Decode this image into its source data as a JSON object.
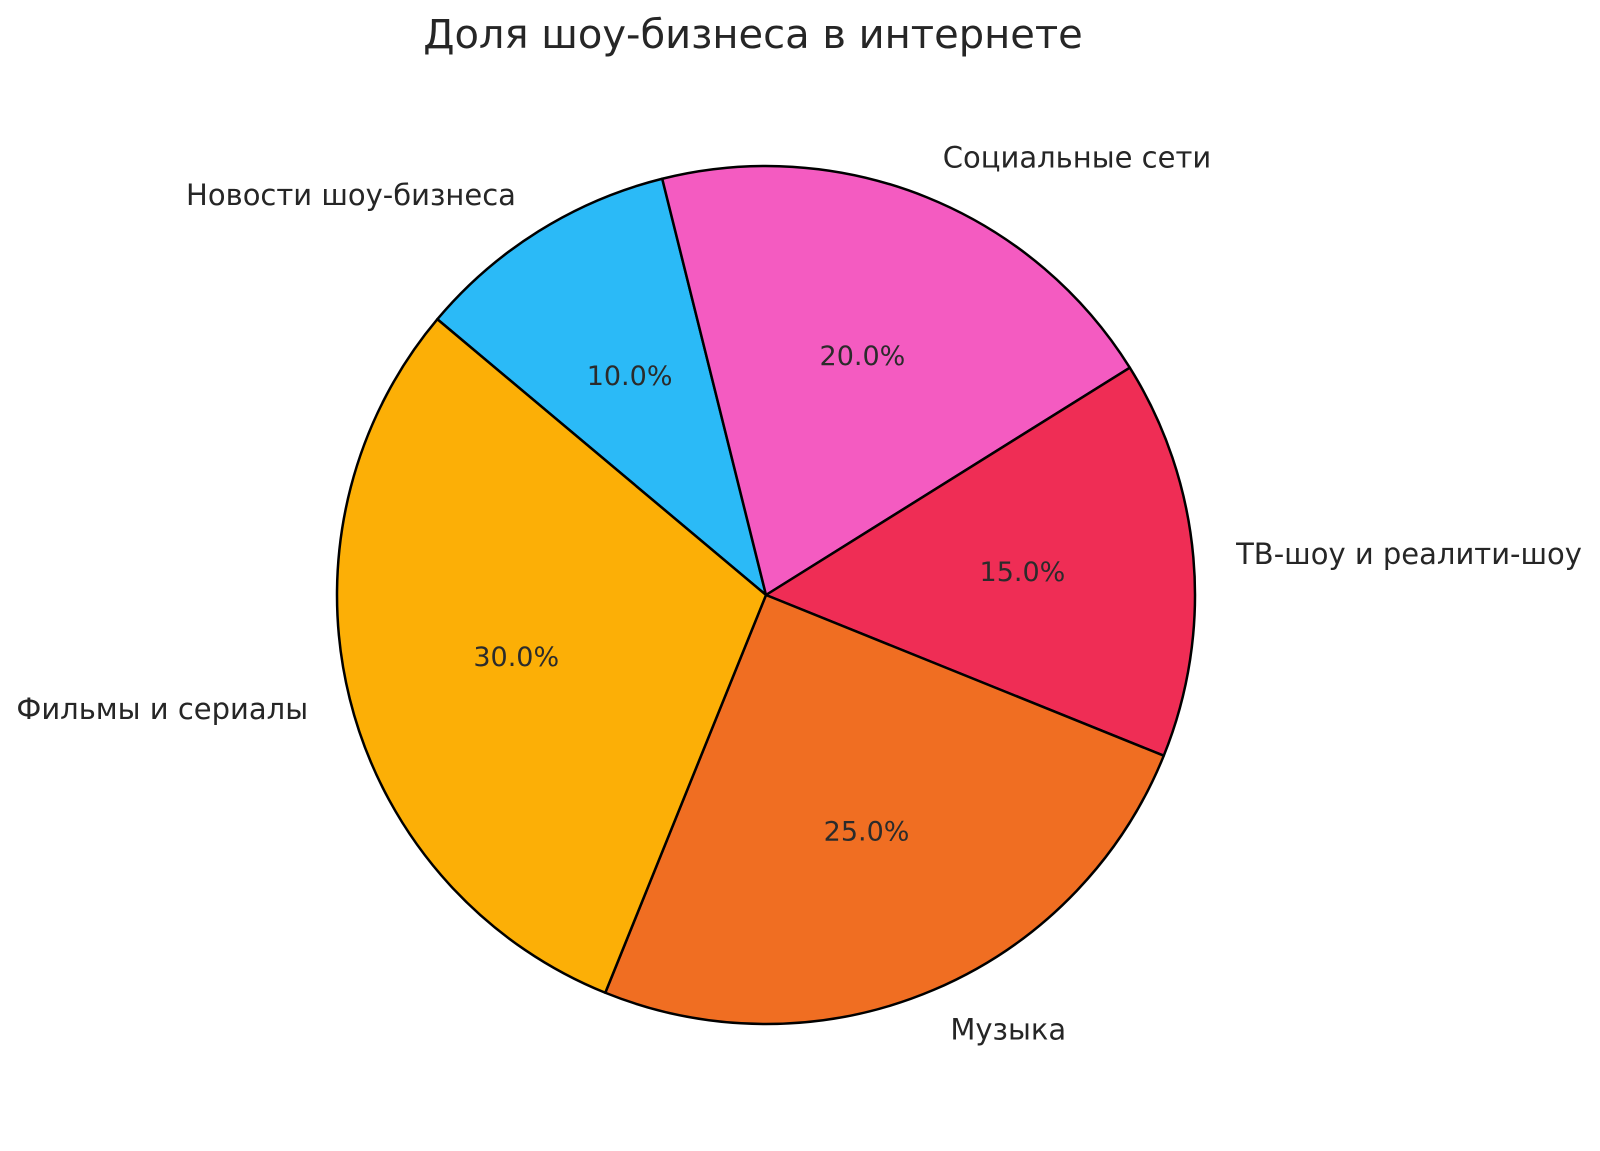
{
  "chart_data": {
    "type": "pie",
    "title": "Доля шоу-бизнеса в интернете",
    "start_angle_deg": 140,
    "direction": "clockwise",
    "edge_color": "#000000",
    "background": "#ffffff",
    "text_color": "#262626",
    "legend": "none",
    "slices": [
      {
        "label": "Новости шоу-бизнеса",
        "value": 10.0,
        "pct_label": "10.0%",
        "color": "#2BBAF7"
      },
      {
        "label": "Социальные сети",
        "value": 20.0,
        "pct_label": "20.0%",
        "color": "#F45BC1"
      },
      {
        "label": "ТВ-шоу и реалити-шоу",
        "value": 15.0,
        "pct_label": "15.0%",
        "color": "#EF2D55"
      },
      {
        "label": "Музыка",
        "value": 25.0,
        "pct_label": "25.0%",
        "color": "#F06E22"
      },
      {
        "label": "Фильмы и сериалы",
        "value": 30.0,
        "pct_label": "30.0%",
        "color": "#FCAF06"
      }
    ]
  }
}
